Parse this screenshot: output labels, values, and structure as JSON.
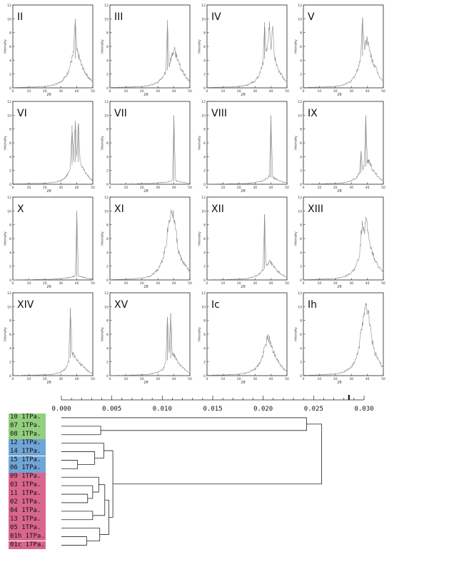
{
  "panels": {
    "ylabel": "Intensity",
    "xlabel": "2θ",
    "x_ticks": [
      "0",
      "10",
      "20",
      "30",
      "40",
      "50"
    ],
    "y_ticks": [
      "0",
      "2",
      "4",
      "6",
      "8",
      "10",
      "12"
    ],
    "line_color": "#8c8c8c"
  },
  "dendrogram": {
    "axis_ticks": [
      "0.000",
      "0.005",
      "0.010",
      "0.015",
      "0.020",
      "0.025",
      "0.030"
    ],
    "group_colors": {
      "green": "#93cf7e",
      "blue": "#6fa6d6",
      "pink": "#d9668d"
    },
    "leaves": [
      {
        "label": "10  1TPa.",
        "group": "green"
      },
      {
        "label": "07  1TPa.",
        "group": "green"
      },
      {
        "label": "08  1TPa.",
        "group": "green"
      },
      {
        "label": "12  1TPa.",
        "group": "blue"
      },
      {
        "label": "14  1TPa.",
        "group": "blue"
      },
      {
        "label": "15  1TPa.",
        "group": "blue"
      },
      {
        "label": "06  1TPa.",
        "group": "blue"
      },
      {
        "label": "09  1TPa.",
        "group": "pink"
      },
      {
        "label": "03  1TPa.",
        "group": "pink"
      },
      {
        "label": "11  1TPa.",
        "group": "pink"
      },
      {
        "label": "02  1TPa.",
        "group": "pink"
      },
      {
        "label": "04  1TPa.",
        "group": "pink"
      },
      {
        "label": "13  1TPa.",
        "group": "pink"
      },
      {
        "label": "05  1TPa.",
        "group": "pink"
      },
      {
        "label": "01h 1TPa.",
        "group": "pink"
      },
      {
        "label": "01c 1TPa.",
        "group": "pink"
      }
    ]
  },
  "chart_data": [
    {
      "type": "line",
      "title": "II",
      "xlabel": "2θ",
      "ylabel": "Intensity",
      "xlim": [
        0,
        50
      ],
      "ylim": [
        0,
        10
      ],
      "x": [
        0,
        10,
        20,
        25,
        30,
        33,
        35,
        37,
        38,
        39,
        40,
        41,
        42,
        43,
        45,
        48,
        50
      ],
      "y": [
        0.05,
        0.1,
        0.2,
        0.4,
        0.9,
        1.6,
        2.6,
        4.2,
        5.0,
        10.0,
        5.3,
        4.7,
        4.0,
        3.2,
        2.3,
        1.3,
        0.9
      ]
    },
    {
      "type": "line",
      "title": "III",
      "xlabel": "2θ",
      "ylabel": "Intensity",
      "xlim": [
        0,
        50
      ],
      "ylim": [
        0,
        10
      ],
      "x": [
        0,
        10,
        20,
        25,
        30,
        33,
        35,
        36,
        37,
        38,
        40,
        42,
        43,
        45,
        48,
        50
      ],
      "y": [
        0.05,
        0.1,
        0.2,
        0.35,
        0.8,
        1.5,
        2.4,
        9.8,
        3.2,
        4.2,
        5.5,
        4.5,
        3.6,
        2.5,
        1.4,
        0.9
      ]
    },
    {
      "type": "line",
      "title": "IV",
      "xlabel": "2θ",
      "ylabel": "Intensity",
      "xlim": [
        0,
        50
      ],
      "ylim": [
        0,
        10
      ],
      "x": [
        0,
        10,
        20,
        25,
        30,
        33,
        35,
        36,
        37,
        38,
        39,
        40,
        41,
        42,
        43,
        45,
        48,
        50
      ],
      "y": [
        0.05,
        0.1,
        0.2,
        0.4,
        1.0,
        2.0,
        3.5,
        9.5,
        5.2,
        6.0,
        9.2,
        5.5,
        8.8,
        4.6,
        3.8,
        2.5,
        1.3,
        0.8
      ]
    },
    {
      "type": "line",
      "title": "V",
      "xlabel": "2θ",
      "ylabel": "Intensity",
      "xlim": [
        0,
        50
      ],
      "ylim": [
        0,
        10
      ],
      "x": [
        0,
        10,
        20,
        25,
        30,
        33,
        35,
        36,
        37,
        38,
        39,
        40,
        41,
        42,
        44,
        46,
        48,
        50
      ],
      "y": [
        0.05,
        0.1,
        0.2,
        0.4,
        1.0,
        2.0,
        3.5,
        5.0,
        10.0,
        5.8,
        6.5,
        7.2,
        5.5,
        4.8,
        3.5,
        2.4,
        1.5,
        0.9
      ]
    },
    {
      "type": "line",
      "title": "VI",
      "xlabel": "2θ",
      "ylabel": "Intensity",
      "xlim": [
        0,
        50
      ],
      "ylim": [
        0,
        10
      ],
      "x": [
        0,
        10,
        20,
        25,
        30,
        33,
        35,
        36,
        37,
        38,
        39,
        40,
        41,
        42,
        43,
        45,
        48,
        50
      ],
      "y": [
        0.05,
        0.1,
        0.15,
        0.25,
        0.5,
        1.0,
        1.8,
        2.5,
        8.5,
        3.5,
        9.2,
        4.0,
        8.7,
        3.2,
        2.6,
        1.8,
        0.9,
        0.5
      ]
    },
    {
      "type": "line",
      "title": "VII",
      "xlabel": "2θ",
      "ylabel": "Intensity",
      "xlim": [
        0,
        50
      ],
      "ylim": [
        0,
        10
      ],
      "x": [
        0,
        10,
        20,
        25,
        30,
        35,
        38,
        39,
        40,
        41,
        42,
        45,
        48,
        50
      ],
      "y": [
        0.02,
        0.05,
        0.08,
        0.12,
        0.2,
        0.3,
        0.45,
        0.55,
        10.0,
        0.5,
        0.45,
        0.3,
        0.2,
        0.1
      ]
    },
    {
      "type": "line",
      "title": "VIII",
      "xlabel": "2θ",
      "ylabel": "Intensity",
      "xlim": [
        0,
        50
      ],
      "ylim": [
        0,
        10
      ],
      "x": [
        0,
        10,
        20,
        25,
        30,
        35,
        37,
        38,
        39,
        40,
        41,
        42,
        45,
        48,
        50
      ],
      "y": [
        0.02,
        0.05,
        0.08,
        0.12,
        0.25,
        0.5,
        0.8,
        1.0,
        1.2,
        10.0,
        1.1,
        0.9,
        0.5,
        0.3,
        0.2
      ]
    },
    {
      "type": "line",
      "title": "IX",
      "xlabel": "2θ",
      "ylabel": "Intensity",
      "xlim": [
        0,
        50
      ],
      "ylim": [
        0,
        10
      ],
      "x": [
        0,
        10,
        20,
        25,
        30,
        33,
        35,
        36,
        37,
        38,
        39,
        40,
        41,
        42,
        43,
        45,
        48,
        50
      ],
      "y": [
        0.03,
        0.06,
        0.12,
        0.2,
        0.5,
        0.9,
        1.6,
        4.8,
        2.0,
        2.8,
        10.0,
        3.2,
        3.5,
        2.9,
        2.3,
        1.6,
        0.8,
        0.5
      ]
    },
    {
      "type": "line",
      "title": "X",
      "xlabel": "2θ",
      "ylabel": "Intensity",
      "xlim": [
        0,
        50
      ],
      "ylim": [
        0,
        10
      ],
      "x": [
        0,
        10,
        20,
        25,
        30,
        35,
        38,
        39,
        40,
        41,
        42,
        45,
        48,
        50
      ],
      "y": [
        0.02,
        0.05,
        0.08,
        0.12,
        0.2,
        0.35,
        0.5,
        0.55,
        10.0,
        0.55,
        0.5,
        0.35,
        0.2,
        0.15
      ]
    },
    {
      "type": "line",
      "title": "XI",
      "xlabel": "2θ",
      "ylabel": "Intensity",
      "xlim": [
        0,
        50
      ],
      "ylim": [
        0,
        10
      ],
      "x": [
        0,
        10,
        20,
        25,
        30,
        33,
        35,
        36,
        37,
        38,
        39,
        40,
        41,
        42,
        43,
        45,
        48,
        50
      ],
      "y": [
        0.05,
        0.1,
        0.25,
        0.5,
        1.5,
        3.0,
        5.0,
        7.0,
        8.5,
        9.5,
        10.0,
        9.0,
        7.5,
        5.5,
        4.0,
        2.8,
        1.8,
        1.2
      ]
    },
    {
      "type": "line",
      "title": "XII",
      "xlabel": "2θ",
      "ylabel": "Intensity",
      "xlim": [
        0,
        50
      ],
      "ylim": [
        0,
        10
      ],
      "x": [
        0,
        10,
        20,
        25,
        30,
        33,
        35,
        36,
        37,
        38,
        39,
        40,
        41,
        42,
        45,
        48,
        50
      ],
      "y": [
        0.03,
        0.06,
        0.12,
        0.2,
        0.5,
        0.9,
        1.5,
        9.5,
        2.0,
        2.4,
        2.6,
        2.5,
        2.2,
        1.8,
        1.1,
        0.6,
        0.4
      ]
    },
    {
      "type": "line",
      "title": "XIII",
      "xlabel": "2θ",
      "ylabel": "Intensity",
      "xlim": [
        0,
        50
      ],
      "ylim": [
        0,
        10
      ],
      "x": [
        0,
        10,
        20,
        25,
        30,
        33,
        35,
        36,
        37,
        38,
        39,
        40,
        41,
        42,
        43,
        45,
        48,
        50
      ],
      "y": [
        0.05,
        0.1,
        0.2,
        0.4,
        1.0,
        2.0,
        3.5,
        6.5,
        8.5,
        7.0,
        9.0,
        7.5,
        6.0,
        5.0,
        4.0,
        2.7,
        1.6,
        1.0
      ]
    },
    {
      "type": "line",
      "title": "XIV",
      "xlabel": "2θ",
      "ylabel": "Intensity",
      "xlim": [
        0,
        50
      ],
      "ylim": [
        0,
        10
      ],
      "x": [
        0,
        10,
        20,
        25,
        30,
        33,
        34,
        35,
        36,
        37,
        38,
        39,
        40,
        42,
        45,
        48,
        50
      ],
      "y": [
        0.03,
        0.06,
        0.12,
        0.2,
        0.5,
        1.0,
        1.5,
        2.2,
        9.8,
        3.2,
        3.0,
        2.8,
        2.3,
        1.8,
        1.1,
        0.5,
        0.3
      ]
    },
    {
      "type": "line",
      "title": "XV",
      "xlabel": "2θ",
      "ylabel": "Intensity",
      "xlim": [
        0,
        50
      ],
      "ylim": [
        0,
        10
      ],
      "x": [
        0,
        10,
        20,
        25,
        30,
        33,
        34,
        35,
        36,
        37,
        38,
        39,
        40,
        41,
        42,
        45,
        48,
        50
      ],
      "y": [
        0.03,
        0.06,
        0.12,
        0.2,
        0.5,
        0.9,
        1.3,
        1.9,
        8.5,
        2.8,
        9.0,
        3.2,
        3.0,
        2.6,
        2.2,
        1.3,
        0.6,
        0.4
      ]
    },
    {
      "type": "line",
      "title": "Ic",
      "xlabel": "2θ",
      "ylabel": "Intensity",
      "xlim": [
        0,
        50
      ],
      "ylim": [
        0,
        10
      ],
      "x": [
        0,
        10,
        20,
        25,
        30,
        33,
        35,
        36,
        37,
        38,
        39,
        40,
        41,
        42,
        44,
        46,
        48,
        50
      ],
      "y": [
        0.05,
        0.1,
        0.2,
        0.4,
        0.9,
        1.8,
        3.0,
        4.0,
        4.8,
        5.5,
        5.3,
        4.5,
        3.8,
        3.2,
        2.3,
        1.6,
        0.9,
        0.6
      ]
    },
    {
      "type": "line",
      "title": "Ih",
      "xlabel": "2θ",
      "ylabel": "Intensity",
      "xlim": [
        0,
        50
      ],
      "ylim": [
        0,
        10
      ],
      "x": [
        0,
        10,
        20,
        25,
        30,
        33,
        35,
        36,
        37,
        38,
        39,
        40,
        41,
        42,
        43,
        45,
        48,
        50
      ],
      "y": [
        0.05,
        0.1,
        0.25,
        0.5,
        1.2,
        2.5,
        4.5,
        6.0,
        7.5,
        8.5,
        10.0,
        9.5,
        8.5,
        7.0,
        5.0,
        3.2,
        1.8,
        1.2
      ]
    },
    {
      "type": "dendrogram",
      "xlim": [
        0.0,
        0.03
      ],
      "leaves": [
        "10 1TPa.",
        "07 1TPa.",
        "08 1TPa.",
        "12 1TPa.",
        "14 1TPa.",
        "15 1TPa.",
        "06 1TPa.",
        "09 1TPa.",
        "03 1TPa.",
        "11 1TPa.",
        "02 1TPa.",
        "04 1TPa.",
        "13 1TPa.",
        "05 1TPa.",
        "01h 1TPa.",
        "01c 1TPa."
      ],
      "merges": [
        {
          "a": 1,
          "b": 2,
          "height": 0.0039
        },
        {
          "a": 9,
          "b": 10,
          "height": 0.0026
        },
        {
          "a": 8,
          "b": "9+10",
          "height": 0.0031
        },
        {
          "a": 7,
          "b": "8+9+10",
          "height": 0.0037
        },
        {
          "a": 11,
          "b": 12,
          "height": 0.0031
        },
        {
          "a": "7..10",
          "b": "11+12",
          "height": 0.0043
        },
        {
          "a": 14,
          "b": 15,
          "height": 0.0025
        },
        {
          "a": 13,
          "b": "14+15",
          "height": 0.0038
        },
        {
          "a": "7..12",
          "b": "13..15",
          "height": 0.0047
        },
        {
          "a": 5,
          "b": 6,
          "height": 0.0016
        },
        {
          "a": 4,
          "b": "5+6",
          "height": 0.0033
        },
        {
          "a": 3,
          "b": "4..6",
          "height": 0.0042
        },
        {
          "a": "3..6",
          "b": "7..15",
          "height": 0.0051
        },
        {
          "a": 0,
          "b": "1+2",
          "height": 0.0243
        },
        {
          "a": "0..2",
          "b": "3..15",
          "height": 0.0258
        }
      ]
    }
  ]
}
